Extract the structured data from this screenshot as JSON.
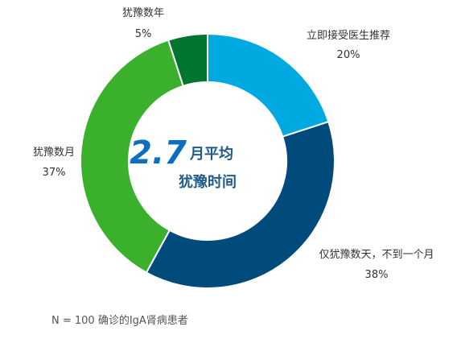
{
  "chart_data": {
    "type": "pie",
    "donut": true,
    "categories": [
      "立即接受医生推荐",
      "仅犹豫数天，不到一个月",
      "犹豫数月",
      "犹豫数年"
    ],
    "values": [
      20,
      38,
      37,
      5
    ],
    "value_labels": [
      "20%",
      "38%",
      "37%",
      "5%"
    ],
    "colors": [
      "#00a9e0",
      "#004b7c",
      "#3bb02c",
      "#00752f"
    ],
    "center": {
      "number": "2.7",
      "unit": "月平均",
      "line2": "犹豫时间"
    },
    "legend": "none"
  },
  "note": "N = 100 确诊的IgA肾病患者"
}
